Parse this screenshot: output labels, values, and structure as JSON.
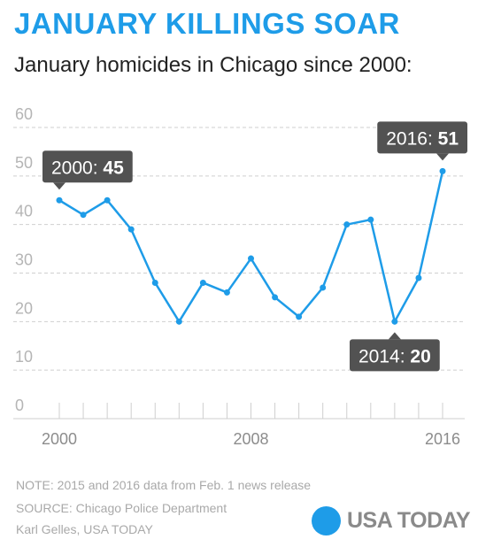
{
  "header": {
    "title": "JANUARY KILLINGS SOAR",
    "subtitle": "January homicides in Chicago since 2000:"
  },
  "chart_data": {
    "type": "line",
    "x": [
      2000,
      2001,
      2002,
      2003,
      2004,
      2005,
      2006,
      2007,
      2008,
      2009,
      2010,
      2011,
      2012,
      2013,
      2014,
      2015,
      2016
    ],
    "values": [
      45,
      42,
      45,
      39,
      28,
      20,
      28,
      26,
      33,
      25,
      21,
      27,
      40,
      41,
      20,
      29,
      51
    ],
    "x_tick_labels": [
      "2000",
      "2008",
      "2016"
    ],
    "y_ticks": [
      0,
      10,
      20,
      30,
      40,
      50,
      60
    ],
    "ylim": [
      0,
      60
    ],
    "xlim": [
      2000,
      2016
    ],
    "grid": true,
    "line_color": "#1e9ce8",
    "callouts": [
      {
        "year": 2000,
        "label": "2000: ",
        "value": "45",
        "position": "above"
      },
      {
        "year": 2014,
        "label": "2014: ",
        "value": "20",
        "position": "below"
      },
      {
        "year": 2016,
        "label": "2016: ",
        "value": "51",
        "position": "above"
      }
    ]
  },
  "footer": {
    "note": "NOTE:  2015 and 2016 data from Feb. 1 news release",
    "source": "SOURCE:  Chicago Police Department",
    "credit": "Karl Gelles, USA TODAY",
    "logo_text": "USA TODAY",
    "logo_color": "#1e9ce8"
  }
}
